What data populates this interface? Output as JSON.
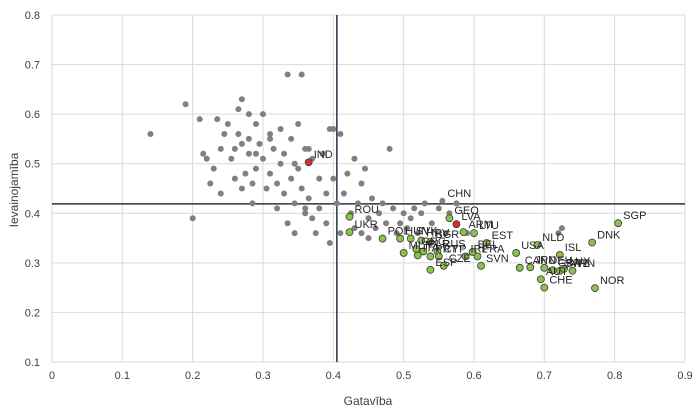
{
  "chart_data": {
    "type": "scatter",
    "xlabel": "Gatavība",
    "ylabel": "Ievainojamība",
    "xlim": [
      0,
      0.9
    ],
    "ylim": [
      0.1,
      0.8
    ],
    "x_ticks": [
      "0",
      "0.1",
      "0.2",
      "0.3",
      "0.4",
      "0.5",
      "0.6",
      "0.7",
      "0.8",
      "0.9"
    ],
    "y_ticks": [
      "0.1",
      "0.2",
      "0.3",
      "0.4",
      "0.5",
      "0.6",
      "0.7",
      "0.8"
    ],
    "grid": true,
    "reference_lines": {
      "x": 0.405,
      "y": 0.419
    },
    "colors": {
      "other": "#808080",
      "highlight": "#8bc34a",
      "lva": "#d32f2f",
      "ind": "#d32f2f",
      "ref_line": "#243447"
    },
    "labeled_points": [
      {
        "label": "IND",
        "x": 0.365,
        "y": 0.503,
        "color": "ind"
      },
      {
        "label": "CHN",
        "x": 0.555,
        "y": 0.425,
        "color": "other"
      },
      {
        "label": "LVA",
        "x": 0.575,
        "y": 0.378,
        "color": "lva"
      },
      {
        "label": "GEO",
        "x": 0.565,
        "y": 0.39,
        "color": "highlight"
      },
      {
        "label": "ROU",
        "x": 0.423,
        "y": 0.393,
        "color": "highlight"
      },
      {
        "label": "UKR",
        "x": 0.423,
        "y": 0.362,
        "color": "highlight"
      },
      {
        "label": "ARM",
        "x": 0.585,
        "y": 0.362,
        "color": "highlight"
      },
      {
        "label": "LTU",
        "x": 0.6,
        "y": 0.36,
        "color": "highlight"
      },
      {
        "label": "EST",
        "x": 0.618,
        "y": 0.34,
        "color": "highlight"
      },
      {
        "label": "NLD",
        "x": 0.69,
        "y": 0.336,
        "color": "highlight"
      },
      {
        "label": "DNK",
        "x": 0.768,
        "y": 0.341,
        "color": "highlight"
      },
      {
        "label": "SGP",
        "x": 0.805,
        "y": 0.38,
        "color": "highlight"
      },
      {
        "label": "USA",
        "x": 0.66,
        "y": 0.32,
        "color": "highlight"
      },
      {
        "label": "ISL",
        "x": 0.722,
        "y": 0.316,
        "color": "highlight"
      },
      {
        "label": "BEL",
        "x": 0.598,
        "y": 0.322,
        "color": "highlight"
      },
      {
        "label": "FRA",
        "x": 0.605,
        "y": 0.313,
        "color": "highlight"
      },
      {
        "label": "SVN",
        "x": 0.61,
        "y": 0.294,
        "color": "highlight"
      },
      {
        "label": "CZE",
        "x": 0.557,
        "y": 0.294,
        "color": "highlight"
      },
      {
        "label": "ESP",
        "x": 0.538,
        "y": 0.286,
        "color": "highlight"
      },
      {
        "label": "MLT",
        "x": 0.5,
        "y": 0.32,
        "color": "highlight"
      },
      {
        "label": "POL",
        "x": 0.47,
        "y": 0.349,
        "color": "highlight"
      },
      {
        "label": "HUN",
        "x": 0.495,
        "y": 0.349,
        "color": "highlight"
      },
      {
        "label": "SVK",
        "x": 0.51,
        "y": 0.349,
        "color": "highlight"
      },
      {
        "label": "HRV",
        "x": 0.525,
        "y": 0.345,
        "color": "highlight"
      },
      {
        "label": "BGR",
        "x": 0.538,
        "y": 0.342,
        "color": "highlight"
      },
      {
        "label": "GRC",
        "x": 0.518,
        "y": 0.328,
        "color": "highlight"
      },
      {
        "label": "BLR",
        "x": 0.528,
        "y": 0.323,
        "color": "highlight"
      },
      {
        "label": "RUS",
        "x": 0.548,
        "y": 0.323,
        "color": "highlight"
      },
      {
        "label": "ITA",
        "x": 0.52,
        "y": 0.315,
        "color": "highlight"
      },
      {
        "label": "PRT",
        "x": 0.538,
        "y": 0.313,
        "color": "highlight"
      },
      {
        "label": "CYP",
        "x": 0.55,
        "y": 0.313,
        "color": "highlight"
      },
      {
        "label": "IRL",
        "x": 0.588,
        "y": 0.313,
        "color": "highlight"
      },
      {
        "label": "CAN",
        "x": 0.665,
        "y": 0.29,
        "color": "highlight"
      },
      {
        "label": "JPN",
        "x": 0.68,
        "y": 0.291,
        "color": "highlight"
      },
      {
        "label": "DEU",
        "x": 0.7,
        "y": 0.29,
        "color": "highlight"
      },
      {
        "label": "GBR",
        "x": 0.712,
        "y": 0.285,
        "color": "highlight"
      },
      {
        "label": "SWE",
        "x": 0.722,
        "y": 0.284,
        "color": "highlight"
      },
      {
        "label": "LUX",
        "x": 0.728,
        "y": 0.288,
        "color": "highlight"
      },
      {
        "label": "FIN",
        "x": 0.74,
        "y": 0.284,
        "color": "highlight"
      },
      {
        "label": "AUT",
        "x": 0.695,
        "y": 0.267,
        "color": "highlight"
      },
      {
        "label": "CHE",
        "x": 0.7,
        "y": 0.25,
        "color": "highlight"
      },
      {
        "label": "NOR",
        "x": 0.772,
        "y": 0.249,
        "color": "highlight"
      }
    ],
    "other_points": [
      [
        0.14,
        0.56
      ],
      [
        0.19,
        0.62
      ],
      [
        0.2,
        0.39
      ],
      [
        0.21,
        0.59
      ],
      [
        0.215,
        0.52
      ],
      [
        0.22,
        0.51
      ],
      [
        0.225,
        0.46
      ],
      [
        0.23,
        0.49
      ],
      [
        0.235,
        0.59
      ],
      [
        0.24,
        0.44
      ],
      [
        0.24,
        0.53
      ],
      [
        0.245,
        0.56
      ],
      [
        0.25,
        0.58
      ],
      [
        0.255,
        0.51
      ],
      [
        0.26,
        0.47
      ],
      [
        0.26,
        0.53
      ],
      [
        0.265,
        0.56
      ],
      [
        0.265,
        0.61
      ],
      [
        0.27,
        0.63
      ],
      [
        0.27,
        0.54
      ],
      [
        0.27,
        0.45
      ],
      [
        0.275,
        0.48
      ],
      [
        0.28,
        0.52
      ],
      [
        0.28,
        0.55
      ],
      [
        0.285,
        0.42
      ],
      [
        0.285,
        0.46
      ],
      [
        0.29,
        0.58
      ],
      [
        0.29,
        0.49
      ],
      [
        0.295,
        0.54
      ],
      [
        0.3,
        0.6
      ],
      [
        0.3,
        0.51
      ],
      [
        0.305,
        0.45
      ],
      [
        0.31,
        0.56
      ],
      [
        0.31,
        0.48
      ],
      [
        0.315,
        0.53
      ],
      [
        0.32,
        0.41
      ],
      [
        0.32,
        0.46
      ],
      [
        0.325,
        0.5
      ],
      [
        0.325,
        0.57
      ],
      [
        0.33,
        0.44
      ],
      [
        0.33,
        0.52
      ],
      [
        0.335,
        0.68
      ],
      [
        0.335,
        0.38
      ],
      [
        0.34,
        0.47
      ],
      [
        0.34,
        0.55
      ],
      [
        0.345,
        0.42
      ],
      [
        0.345,
        0.36
      ],
      [
        0.35,
        0.49
      ],
      [
        0.35,
        0.58
      ],
      [
        0.355,
        0.68
      ],
      [
        0.355,
        0.45
      ],
      [
        0.36,
        0.53
      ],
      [
        0.36,
        0.4
      ],
      [
        0.365,
        0.43
      ],
      [
        0.37,
        0.39
      ],
      [
        0.37,
        0.51
      ],
      [
        0.375,
        0.36
      ],
      [
        0.38,
        0.41
      ],
      [
        0.38,
        0.47
      ],
      [
        0.385,
        0.52
      ],
      [
        0.39,
        0.38
      ],
      [
        0.39,
        0.44
      ],
      [
        0.395,
        0.34
      ],
      [
        0.4,
        0.47
      ],
      [
        0.4,
        0.57
      ],
      [
        0.405,
        0.42
      ],
      [
        0.41,
        0.36
      ],
      [
        0.41,
        0.56
      ],
      [
        0.415,
        0.44
      ],
      [
        0.42,
        0.48
      ],
      [
        0.425,
        0.4
      ],
      [
        0.43,
        0.37
      ],
      [
        0.43,
        0.51
      ],
      [
        0.435,
        0.42
      ],
      [
        0.44,
        0.36
      ],
      [
        0.44,
        0.46
      ],
      [
        0.445,
        0.49
      ],
      [
        0.45,
        0.39
      ],
      [
        0.45,
        0.35
      ],
      [
        0.455,
        0.43
      ],
      [
        0.46,
        0.37
      ],
      [
        0.465,
        0.4
      ],
      [
        0.47,
        0.42
      ],
      [
        0.475,
        0.38
      ],
      [
        0.48,
        0.53
      ],
      [
        0.485,
        0.41
      ],
      [
        0.49,
        0.36
      ],
      [
        0.495,
        0.38
      ],
      [
        0.5,
        0.4
      ],
      [
        0.505,
        0.37
      ],
      [
        0.51,
        0.39
      ],
      [
        0.515,
        0.41
      ],
      [
        0.52,
        0.36
      ],
      [
        0.525,
        0.4
      ],
      [
        0.53,
        0.42
      ],
      [
        0.54,
        0.38
      ],
      [
        0.55,
        0.41
      ],
      [
        0.56,
        0.36
      ],
      [
        0.565,
        0.4
      ],
      [
        0.575,
        0.42
      ],
      [
        0.59,
        0.36
      ],
      [
        0.72,
        0.36
      ],
      [
        0.725,
        0.37
      ],
      [
        0.36,
        0.41
      ],
      [
        0.28,
        0.6
      ],
      [
        0.31,
        0.55
      ],
      [
        0.345,
        0.5
      ],
      [
        0.395,
        0.57
      ],
      [
        0.365,
        0.53
      ],
      [
        0.29,
        0.52
      ]
    ]
  }
}
